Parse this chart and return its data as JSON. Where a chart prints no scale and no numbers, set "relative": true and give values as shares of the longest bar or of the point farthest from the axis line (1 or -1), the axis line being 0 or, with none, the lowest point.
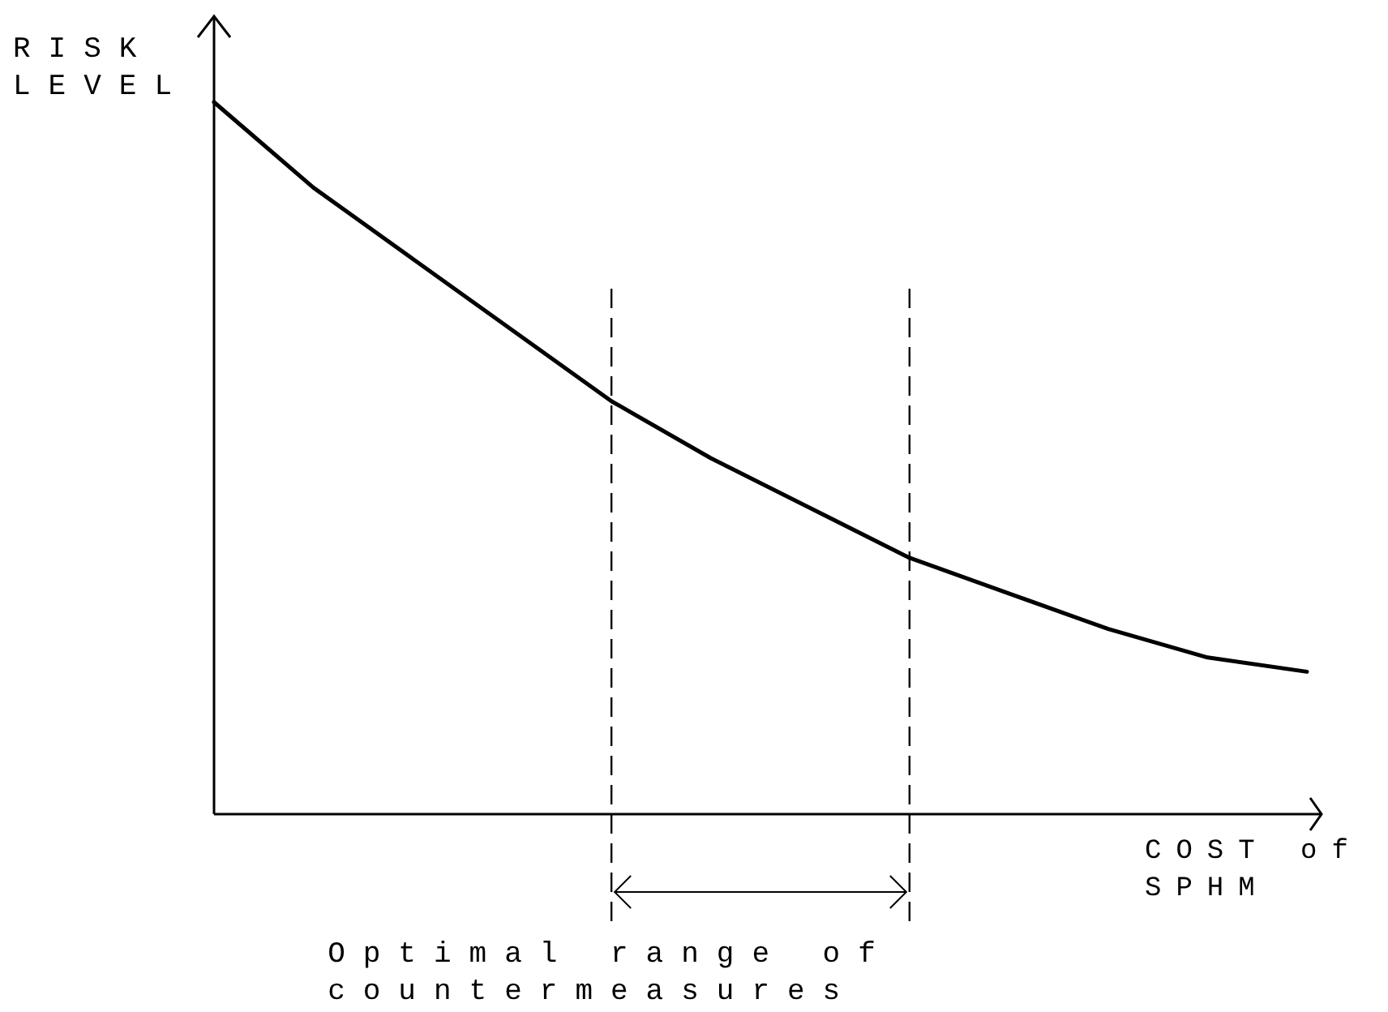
{
  "chart_data": {
    "type": "line",
    "relative": true,
    "xlabel": "COST of SPHM",
    "ylabel": "RISK LEVEL",
    "categories": [
      null,
      null,
      null,
      null,
      null,
      null,
      null,
      null,
      null,
      null,
      null,
      null
    ],
    "series": [
      {
        "color": "#000000",
        "values": [
          1.0,
          0.88,
          0.78,
          0.68,
          0.58,
          0.5,
          0.43,
          0.36,
          0.31,
          0.26,
          0.22,
          0.2
        ]
      }
    ],
    "annotations": [
      "Optimal range of countermeasures"
    ],
    "grid": false,
    "legend": false,
    "marker": "none",
    "line_style": "solid"
  }
}
